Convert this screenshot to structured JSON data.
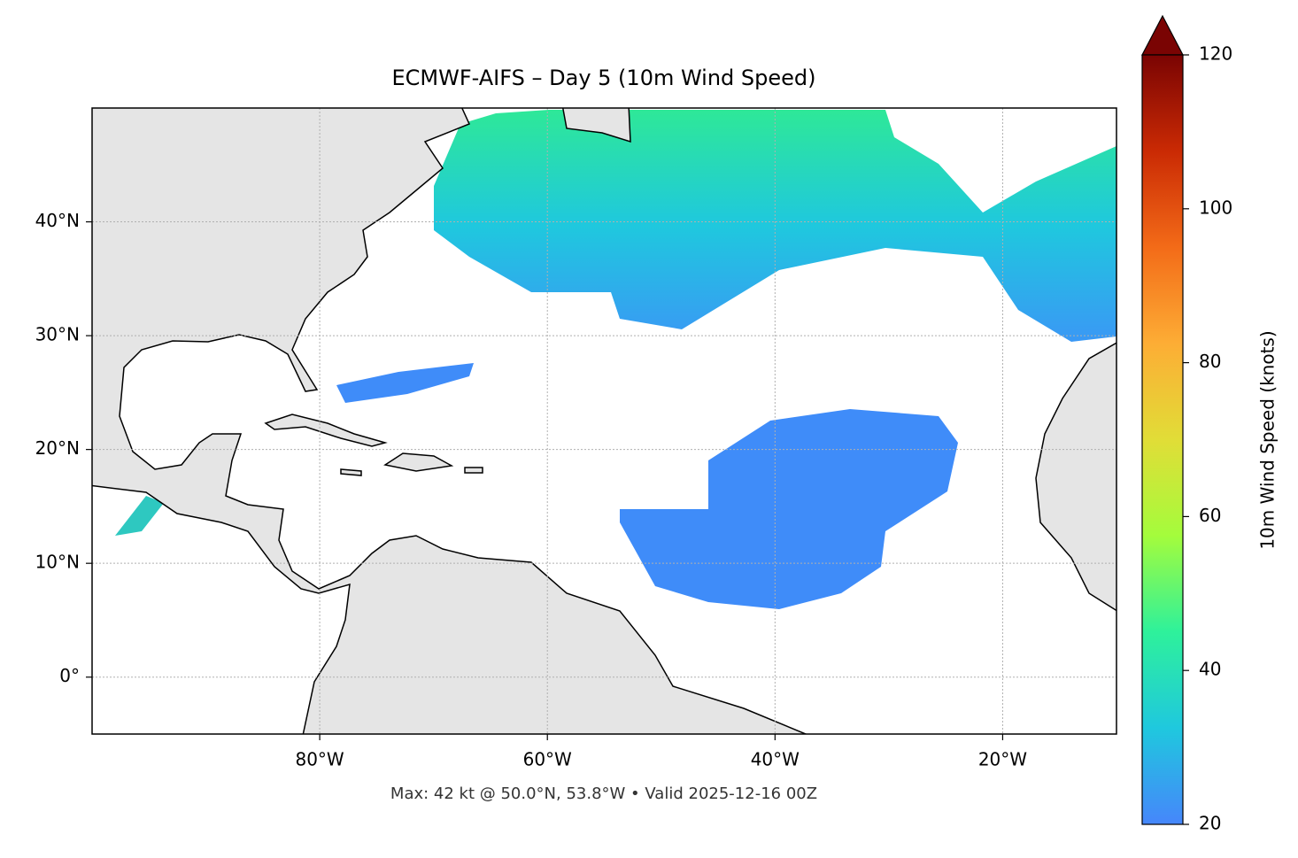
{
  "chart_data": {
    "type": "map",
    "title": "ECMWF-AIFS – Day 5 (10m Wind Speed)",
    "annotation": "Max: 42 kt @ 50.0°N, 53.8°W • Valid 2025-12-16 00Z",
    "xlim": [
      -100,
      -10
    ],
    "xticks": [
      {
        "value": -80,
        "label": "80°W"
      },
      {
        "value": -60,
        "label": "60°W"
      },
      {
        "value": -40,
        "label": "40°W"
      },
      {
        "value": -20,
        "label": "20°W"
      }
    ],
    "ylim": [
      -5,
      50
    ],
    "yticks": [
      {
        "value": 0,
        "label": "0°"
      },
      {
        "value": 10,
        "label": "10°N"
      },
      {
        "value": 20,
        "label": "20°N"
      },
      {
        "value": 30,
        "label": "30°N"
      },
      {
        "value": 40,
        "label": "40°N"
      }
    ],
    "grid": true,
    "colorbar": {
      "label": "10m Wind Speed (knots)",
      "lim": [
        20,
        120
      ],
      "ticks": [
        20,
        40,
        60,
        80,
        100,
        120
      ],
      "colormap": [
        "#4686fb",
        "#1fc8de",
        "#2ef19b",
        "#a4fc3c",
        "#e1dd37",
        "#fdad35",
        "#f36b18",
        "#ca2a04",
        "#7a0403"
      ]
    }
  }
}
